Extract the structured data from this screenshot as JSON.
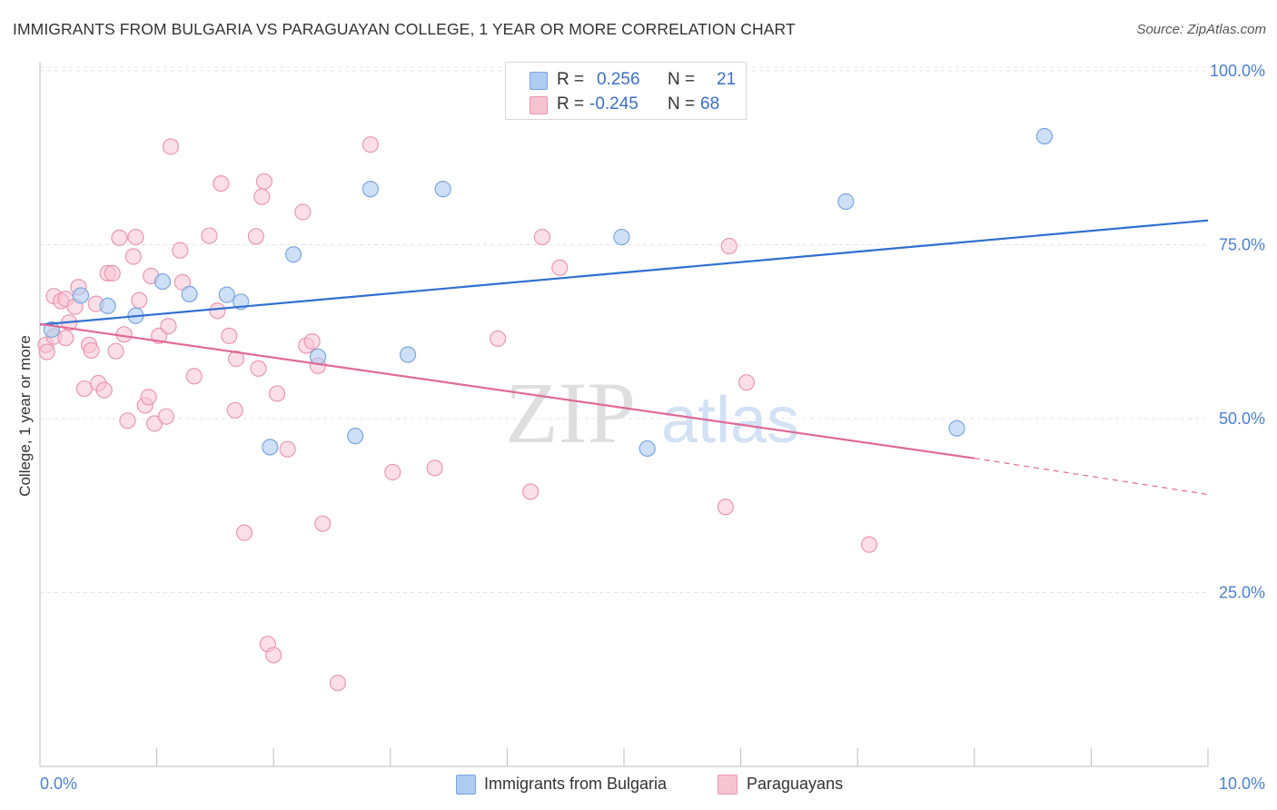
{
  "title": "IMMIGRANTS FROM BULGARIA VS PARAGUAYAN COLLEGE, 1 YEAR OR MORE CORRELATION CHART",
  "source": "Source: ZipAtlas.com",
  "watermark": {
    "zip": "ZIP",
    "atlas": "atlas"
  },
  "stats": {
    "r_label": "R =",
    "n_label": "N =",
    "bulgaria": {
      "r": "0.256",
      "n": "21"
    },
    "paraguayans": {
      "r": "-0.245",
      "n": "68"
    }
  },
  "legend": {
    "bulgaria": "Immigrants from Bulgaria",
    "paraguayans": "Paraguayans"
  },
  "colors": {
    "blue_fill": "#aecbf2",
    "blue_stroke": "#7aa6e0",
    "blue_line": "#2f6fd1",
    "pink_fill": "#f7c3d3",
    "pink_stroke": "#e997b2",
    "pink_line": "#e06a96",
    "tick_text": "#4a7fd0",
    "grid": "#e4e4e4"
  },
  "chart_data": {
    "type": "scatter",
    "title": "IMMIGRANTS FROM BULGARIA VS PARAGUAYAN COLLEGE, 1 YEAR OR MORE CORRELATION CHART",
    "xlabel": "",
    "ylabel": "College, 1 year or more",
    "xlim": [
      0,
      10
    ],
    "ylim": [
      0,
      102
    ],
    "x_tick_labels": [
      "0.0%",
      "10.0%"
    ],
    "y_ticks": [
      25,
      50,
      75,
      100
    ],
    "y_tick_labels": [
      "25.0%",
      "50.0%",
      "75.0%",
      "100.0%"
    ],
    "grid": true,
    "legend_position": "bottom",
    "series": [
      {
        "name": "Immigrants from Bulgaria",
        "points": [
          [
            0.1,
            62.8
          ],
          [
            0.35,
            67.7
          ],
          [
            0.58,
            66.2
          ],
          [
            0.82,
            64.8
          ],
          [
            1.05,
            69.7
          ],
          [
            1.28,
            67.9
          ],
          [
            1.6,
            67.8
          ],
          [
            1.72,
            66.8
          ],
          [
            1.97,
            45.9
          ],
          [
            2.17,
            73.6
          ],
          [
            2.38,
            58.9
          ],
          [
            2.7,
            47.5
          ],
          [
            2.83,
            83.0
          ],
          [
            3.15,
            59.2
          ],
          [
            3.45,
            83.0
          ],
          [
            4.98,
            76.1
          ],
          [
            5.2,
            99.6
          ],
          [
            5.2,
            45.7
          ],
          [
            6.9,
            81.2
          ],
          [
            7.85,
            48.6
          ],
          [
            8.6,
            90.6
          ]
        ],
        "trend": {
          "x": [
            0,
            10
          ],
          "y": [
            63.5,
            78.5
          ]
        }
      },
      {
        "name": "Paraguayans",
        "points": [
          [
            0.05,
            60.6
          ],
          [
            0.06,
            59.6
          ],
          [
            0.12,
            61.8
          ],
          [
            0.12,
            67.6
          ],
          [
            0.18,
            66.9
          ],
          [
            0.22,
            67.2
          ],
          [
            0.22,
            61.6
          ],
          [
            0.25,
            63.8
          ],
          [
            0.3,
            66.1
          ],
          [
            0.33,
            68.9
          ],
          [
            0.38,
            54.3
          ],
          [
            0.42,
            60.6
          ],
          [
            0.44,
            59.8
          ],
          [
            0.48,
            66.5
          ],
          [
            0.5,
            55.1
          ],
          [
            0.55,
            54.1
          ],
          [
            0.58,
            70.9
          ],
          [
            0.62,
            70.9
          ],
          [
            0.65,
            59.7
          ],
          [
            0.68,
            76.0
          ],
          [
            0.72,
            62.1
          ],
          [
            0.75,
            49.7
          ],
          [
            0.8,
            73.3
          ],
          [
            0.82,
            76.1
          ],
          [
            0.85,
            67.0
          ],
          [
            0.9,
            51.9
          ],
          [
            0.93,
            53.1
          ],
          [
            0.95,
            70.5
          ],
          [
            0.98,
            49.3
          ],
          [
            1.02,
            61.9
          ],
          [
            1.08,
            50.3
          ],
          [
            1.1,
            63.3
          ],
          [
            1.12,
            89.1
          ],
          [
            1.2,
            74.2
          ],
          [
            1.22,
            69.6
          ],
          [
            1.32,
            56.1
          ],
          [
            1.45,
            76.3
          ],
          [
            1.52,
            65.5
          ],
          [
            1.55,
            83.8
          ],
          [
            1.62,
            61.9
          ],
          [
            1.67,
            51.2
          ],
          [
            1.68,
            58.6
          ],
          [
            1.75,
            33.6
          ],
          [
            1.85,
            76.2
          ],
          [
            1.87,
            57.2
          ],
          [
            1.9,
            81.9
          ],
          [
            1.92,
            84.1
          ],
          [
            1.95,
            17.6
          ],
          [
            2.0,
            16.0
          ],
          [
            2.03,
            53.6
          ],
          [
            2.12,
            45.6
          ],
          [
            2.25,
            79.7
          ],
          [
            2.28,
            60.5
          ],
          [
            2.33,
            61.1
          ],
          [
            2.38,
            57.6
          ],
          [
            2.42,
            34.9
          ],
          [
            2.55,
            12.0
          ],
          [
            2.83,
            89.4
          ],
          [
            3.02,
            42.3
          ],
          [
            3.38,
            42.9
          ],
          [
            3.92,
            61.5
          ],
          [
            4.2,
            39.5
          ],
          [
            4.3,
            76.1
          ],
          [
            4.45,
            71.7
          ],
          [
            5.87,
            37.3
          ],
          [
            5.9,
            74.8
          ],
          [
            6.05,
            55.2
          ],
          [
            7.1,
            31.9
          ]
        ],
        "trend": {
          "x": [
            0,
            8.0,
            10
          ],
          "y": [
            63.6,
            44.3,
            39.1
          ],
          "dashed_from": 8.0
        }
      }
    ]
  }
}
